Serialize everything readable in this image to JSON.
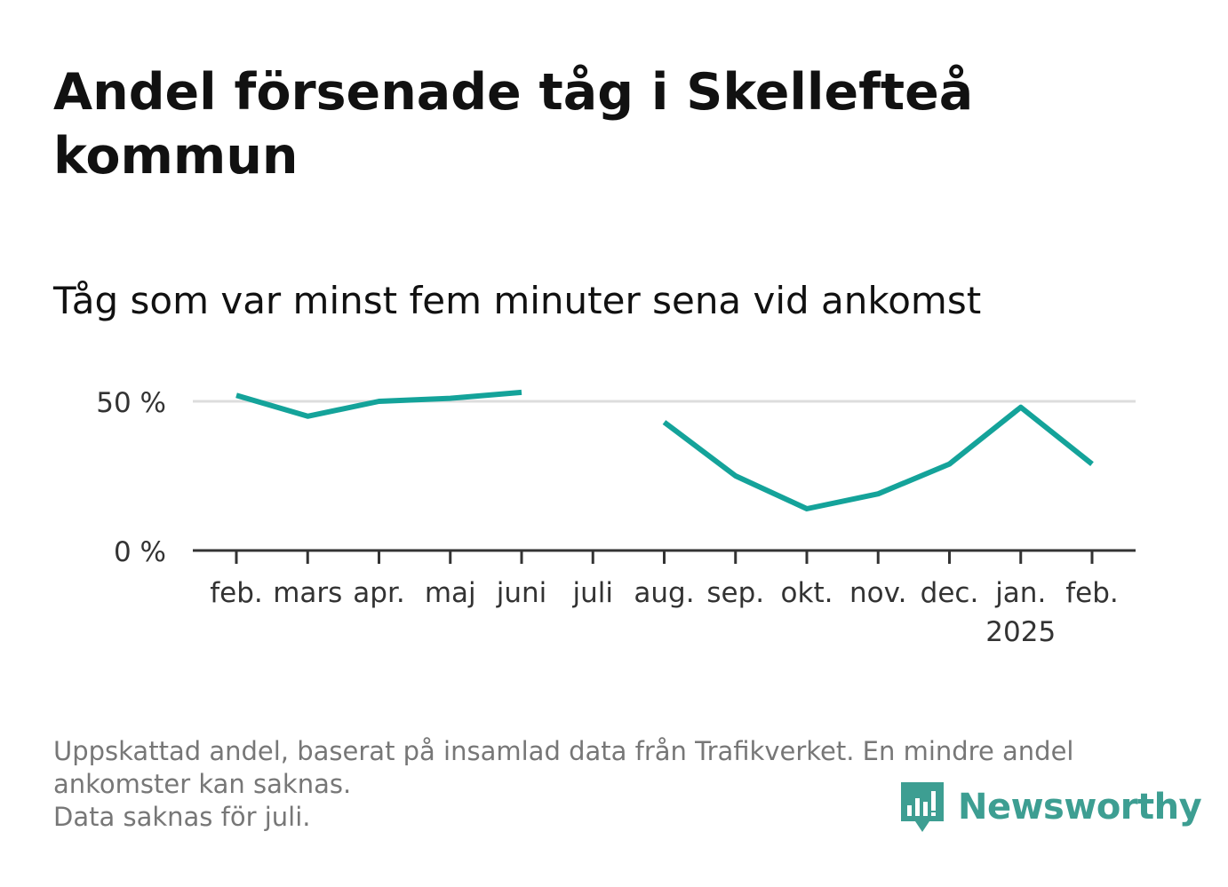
{
  "title": "Andel försenade tåg i Skellefteå kommun",
  "subtitle": "Tåg som var minst fem minuter sena vid ankomst",
  "footnote": {
    "line1": "Uppskattad andel, baserat på insamlad data från Trafikverket. En mindre andel",
    "line2": "ankomster kan saknas.",
    "line3": "Data saknas för juli."
  },
  "brand": {
    "name": "Newsworthy",
    "color": "#3d9e92"
  },
  "colors": {
    "line": "#14a39a",
    "axis": "#333333",
    "grid": "#dddddd",
    "tick_text": "#333333"
  },
  "chart_data": {
    "type": "line",
    "title": "Andel försenade tåg i Skellefteå kommun",
    "subtitle": "Tåg som var minst fem minuter sena vid ankomst",
    "xlabel": "",
    "ylabel": "",
    "categories": [
      "feb.",
      "mars",
      "apr.",
      "maj",
      "juni",
      "juli",
      "aug.",
      "sep.",
      "okt.",
      "nov.",
      "dec.",
      "jan.",
      "feb."
    ],
    "year_labels": [
      "",
      "",
      "",
      "",
      "",
      "",
      "",
      "",
      "",
      "",
      "",
      "2025",
      ""
    ],
    "series": [
      {
        "name": "Andel försenade",
        "values": [
          52,
          45,
          50,
          51,
          53,
          null,
          43,
          25,
          14,
          19,
          29,
          48,
          29
        ]
      }
    ],
    "ylim": [
      0,
      60
    ],
    "yticks": [
      0,
      50
    ],
    "ytick_labels": [
      "0 %",
      "50 %"
    ],
    "grid": true,
    "legend": "none"
  }
}
